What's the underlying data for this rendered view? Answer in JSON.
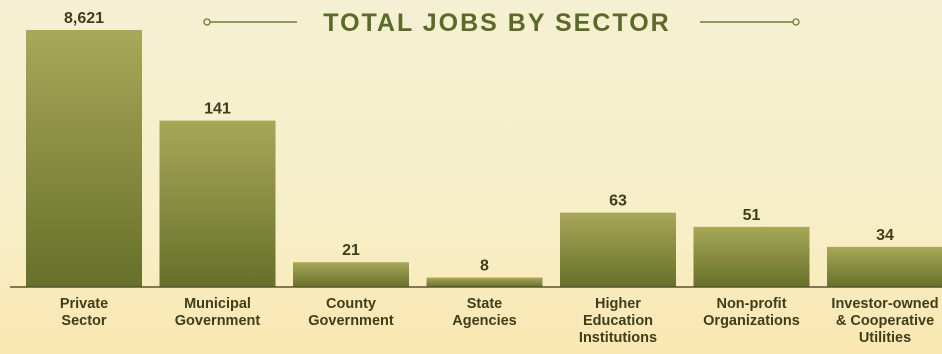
{
  "chart_data": {
    "type": "bar",
    "title": "TOTAL JOBS BY SECTOR",
    "categories": [
      [
        "Private",
        "Sector"
      ],
      [
        "Municipal",
        "Government"
      ],
      [
        "County",
        "Government"
      ],
      [
        "State",
        "Agencies"
      ],
      [
        "Higher",
        "Education",
        "Institutions"
      ],
      [
        "Non-profit",
        "Organizations"
      ],
      [
        "Investor-owned",
        "& Cooperative",
        "Utilities"
      ]
    ],
    "values": [
      8621,
      141,
      21,
      8,
      63,
      51,
      34
    ],
    "value_labels": [
      "8,621",
      "141",
      "21",
      "8",
      "63",
      "51",
      "34"
    ],
    "axis_break": true,
    "colors": {
      "bar_top": "#a8a858",
      "bar_bottom": "#66702a",
      "title": "#5c6a28",
      "baseline": "#555533"
    }
  }
}
